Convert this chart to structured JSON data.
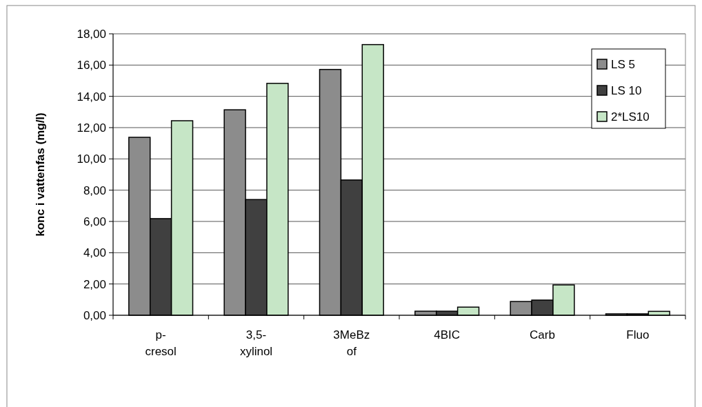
{
  "chart_data": {
    "type": "bar",
    "ylabel": "konc i vattenfas (mg/l)",
    "categories": [
      "p-cresol",
      "3,5-xylinol",
      "3MeBz of",
      "4BIC",
      "Carb",
      "Fluo"
    ],
    "series": [
      {
        "name": "LS 5",
        "color": "#8c8c8c",
        "values": [
          11.38,
          13.14,
          15.72,
          0.26,
          0.88,
          0.09
        ]
      },
      {
        "name": "LS 10",
        "color": "#404040",
        "values": [
          6.18,
          7.4,
          8.65,
          0.26,
          0.97,
          0.09
        ]
      },
      {
        "name": "2*LS10",
        "color": "#c6e6c6",
        "values": [
          12.44,
          14.83,
          17.31,
          0.52,
          1.94,
          0.25
        ]
      }
    ],
    "ylim": [
      0,
      18
    ],
    "yticks": [
      {
        "value": 0,
        "label": "0,00"
      },
      {
        "value": 2,
        "label": "2,00"
      },
      {
        "value": 4,
        "label": "4,00"
      },
      {
        "value": 6,
        "label": "6,00"
      },
      {
        "value": 8,
        "label": "8,00"
      },
      {
        "value": 10,
        "label": "10,00"
      },
      {
        "value": 12,
        "label": "12,00"
      },
      {
        "value": 14,
        "label": "14,00"
      },
      {
        "value": 16,
        "label": "16,00"
      },
      {
        "value": 18,
        "label": "18,00"
      }
    ],
    "grid": "y",
    "legend": "top right"
  }
}
